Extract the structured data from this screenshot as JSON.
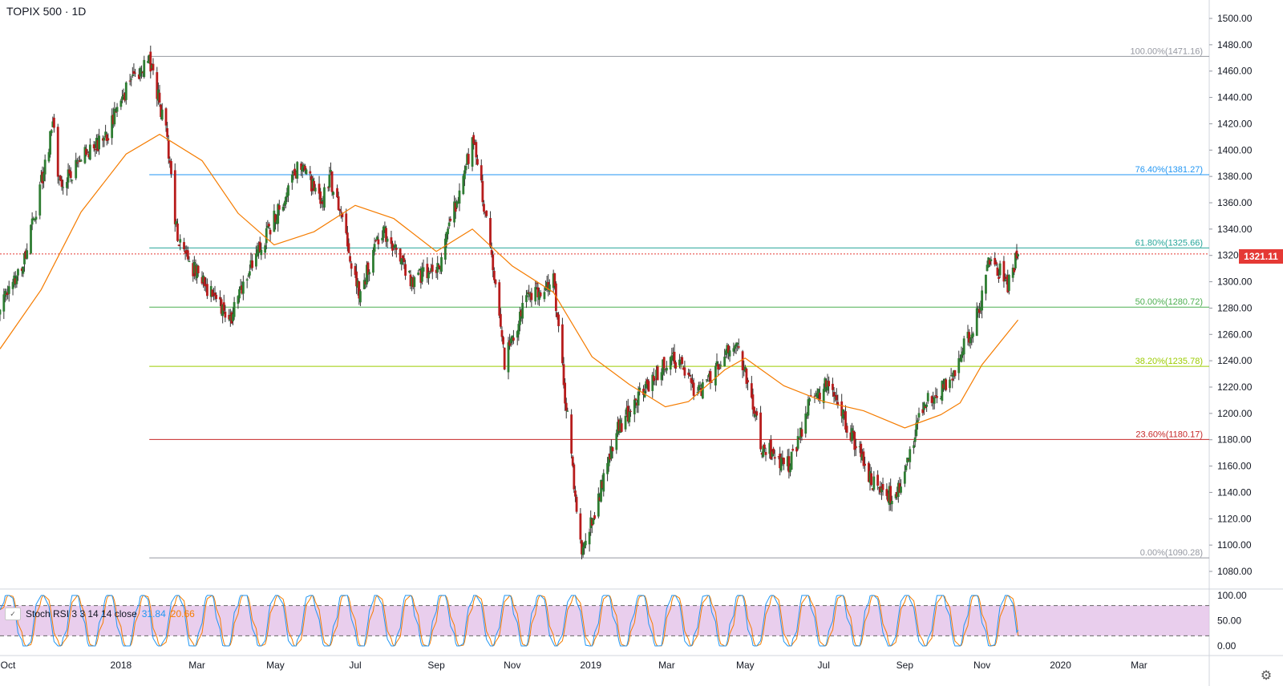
{
  "header": {
    "title": "TOPIX 500 · 1D"
  },
  "price_scale": {
    "min": 1070,
    "max": 1510,
    "ticks": [
      "1500.00",
      "1480.00",
      "1460.00",
      "1440.00",
      "1420.00",
      "1400.00",
      "1380.00",
      "1360.00",
      "1340.00",
      "1320.00",
      "1300.00",
      "1280.00",
      "1260.00",
      "1240.00",
      "1220.00",
      "1200.00",
      "1180.00",
      "1160.00",
      "1140.00",
      "1120.00",
      "1100.00",
      "1080.00"
    ],
    "last_price_label": "1321.11",
    "last_price_color": "#e53935"
  },
  "time_axis": {
    "labels": [
      "Oct",
      "2018",
      "Mar",
      "May",
      "Jul",
      "Sep",
      "Nov",
      "2019",
      "Mar",
      "May",
      "Jul",
      "Sep",
      "Nov",
      "2020",
      "Mar"
    ]
  },
  "stoch": {
    "name": "Stoch RSI 3 3 14 14 close",
    "k_value": "31.84",
    "d_value": "20.66",
    "k_color": "#2196f3",
    "d_color": "#f57c00",
    "band_fill": "#e1bee7",
    "ticks": [
      "100.00",
      "50.00",
      "0.00"
    ]
  },
  "colors": {
    "up": "#2e7d32",
    "down": "#b71c1c",
    "ma": "#f57c00",
    "grid_line": "#e0e3eb"
  },
  "chart_data": [
    {
      "type": "candlestick",
      "title": "TOPIX 500 · 1D",
      "x_range": [
        "2017-10",
        "2020-03"
      ],
      "ylim": [
        1070,
        1510
      ],
      "series": [
        {
          "name": "price",
          "anchors": [
            [
              "2017-09-29",
              1278
            ],
            [
              "2017-10-20",
              1322
            ],
            [
              "2017-11-09",
              1420
            ],
            [
              "2017-11-15",
              1370
            ],
            [
              "2017-12-01",
              1395
            ],
            [
              "2017-12-20",
              1410
            ],
            [
              "2018-01-05",
              1445
            ],
            [
              "2018-01-23",
              1471
            ],
            [
              "2018-02-06",
              1410
            ],
            [
              "2018-02-14",
              1330
            ],
            [
              "2018-03-05",
              1300
            ],
            [
              "2018-03-26",
              1270
            ],
            [
              "2018-04-17",
              1322
            ],
            [
              "2018-05-21",
              1390
            ],
            [
              "2018-06-05",
              1360
            ],
            [
              "2018-06-13",
              1378
            ],
            [
              "2018-06-26",
              1330
            ],
            [
              "2018-07-05",
              1290
            ],
            [
              "2018-07-23",
              1340
            ],
            [
              "2018-08-15",
              1300
            ],
            [
              "2018-09-05",
              1310
            ],
            [
              "2018-10-02",
              1409
            ],
            [
              "2018-10-10",
              1360
            ],
            [
              "2018-10-26",
              1240
            ],
            [
              "2018-11-12",
              1290
            ],
            [
              "2018-12-03",
              1300
            ],
            [
              "2018-12-25",
              1091
            ],
            [
              "2019-01-21",
              1185
            ],
            [
              "2019-02-05",
              1210
            ],
            [
              "2019-03-05",
              1245
            ],
            [
              "2019-03-25",
              1215
            ],
            [
              "2019-04-25",
              1256
            ],
            [
              "2019-05-14",
              1175
            ],
            [
              "2019-06-04",
              1160
            ],
            [
              "2019-06-21",
              1210
            ],
            [
              "2019-07-05",
              1225
            ],
            [
              "2019-08-06",
              1150
            ],
            [
              "2019-08-26",
              1135
            ],
            [
              "2019-09-16",
              1205
            ],
            [
              "2019-10-07",
              1225
            ],
            [
              "2019-10-31",
              1282
            ],
            [
              "2019-11-07",
              1320
            ],
            [
              "2019-11-21",
              1298
            ],
            [
              "2019-11-29",
              1321
            ]
          ]
        },
        {
          "name": "moving average",
          "points": [
            [
              "2017-09-29",
              1249
            ],
            [
              "2017-10-31",
              1294
            ],
            [
              "2017-12-01",
              1353
            ],
            [
              "2018-01-05",
              1397
            ],
            [
              "2018-01-31",
              1412
            ],
            [
              "2018-03-05",
              1392
            ],
            [
              "2018-04-02",
              1352
            ],
            [
              "2018-04-30",
              1328
            ],
            [
              "2018-05-31",
              1338
            ],
            [
              "2018-07-02",
              1358
            ],
            [
              "2018-08-01",
              1348
            ],
            [
              "2018-09-03",
              1323
            ],
            [
              "2018-10-01",
              1340
            ],
            [
              "2018-11-01",
              1312
            ],
            [
              "2018-12-03",
              1292
            ],
            [
              "2019-01-02",
              1243
            ],
            [
              "2019-01-31",
              1222
            ],
            [
              "2019-02-28",
              1205
            ],
            [
              "2019-03-18",
              1209
            ],
            [
              "2019-04-15",
              1233
            ],
            [
              "2019-05-01",
              1242
            ],
            [
              "2019-05-31",
              1221
            ],
            [
              "2019-07-01",
              1209
            ],
            [
              "2019-08-01",
              1202
            ],
            [
              "2019-09-02",
              1189
            ],
            [
              "2019-09-30",
              1199
            ],
            [
              "2019-10-15",
              1208
            ],
            [
              "2019-11-01",
              1237
            ],
            [
              "2019-11-29",
              1271
            ]
          ]
        }
      ],
      "fib_levels": [
        {
          "label": "100.00%(1471.16)",
          "value": 1471.16,
          "color": "#9598a1"
        },
        {
          "label": "76.40%(1381.27)",
          "value": 1381.27,
          "color": "#2196f3"
        },
        {
          "label": "61.80%(1325.66)",
          "value": 1325.66,
          "color": "#26a69a"
        },
        {
          "label": "50.00%(1280.72)",
          "value": 1280.72,
          "color": "#4caf50"
        },
        {
          "label": "38.20%(1235.78)",
          "value": 1235.78,
          "color": "#9ccc00"
        },
        {
          "label": "23.60%(1180.17)",
          "value": 1180.17,
          "color": "#c62828"
        },
        {
          "label": "0.00%(1090.28)",
          "value": 1090.28,
          "color": "#9598a1"
        }
      ],
      "fib_start": "2018-01-23",
      "last_price": 1321.11
    },
    {
      "type": "line",
      "title": "Stoch RSI 3 3 14 14 close",
      "ylim": [
        0,
        100
      ],
      "bands": [
        20,
        80
      ],
      "series": [
        {
          "name": "K",
          "last": 31.84
        },
        {
          "name": "D",
          "last": 20.66
        }
      ]
    }
  ]
}
